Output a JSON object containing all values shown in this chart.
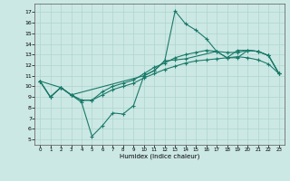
{
  "xlabel": "Humidex (Indice chaleur)",
  "ylabel": "",
  "background_color": "#cce8e4",
  "grid_color": "#afd4ce",
  "line_color": "#1a7a6a",
  "xlim": [
    -0.5,
    23.5
  ],
  "ylim": [
    4.5,
    17.8
  ],
  "xticks": [
    0,
    1,
    2,
    3,
    4,
    5,
    6,
    7,
    8,
    9,
    10,
    11,
    12,
    13,
    14,
    15,
    16,
    17,
    18,
    19,
    20,
    21,
    22,
    23
  ],
  "yticks": [
    5,
    6,
    7,
    8,
    9,
    10,
    11,
    12,
    13,
    14,
    15,
    16,
    17
  ],
  "line1_x": [
    0,
    1,
    2,
    3,
    4,
    5,
    6,
    7,
    8,
    9,
    10,
    11,
    12,
    13,
    14,
    15,
    16,
    17,
    18,
    19,
    20,
    21,
    22,
    23
  ],
  "line1_y": [
    10.5,
    9.0,
    9.9,
    9.2,
    8.5,
    5.3,
    6.3,
    7.5,
    7.4,
    8.2,
    11.0,
    11.5,
    12.4,
    17.1,
    15.9,
    15.3,
    14.5,
    13.3,
    12.7,
    13.4,
    13.4,
    13.3,
    12.9,
    11.2
  ],
  "line2_x": [
    0,
    2,
    3,
    10,
    11,
    12,
    13,
    14,
    17,
    18,
    19,
    20,
    21,
    22,
    23
  ],
  "line2_y": [
    10.5,
    9.9,
    9.2,
    11.0,
    11.5,
    12.4,
    12.5,
    12.6,
    13.3,
    12.7,
    12.7,
    13.4,
    13.3,
    12.9,
    11.2
  ],
  "line3_x": [
    0,
    1,
    2,
    3,
    4,
    5,
    6,
    7,
    8,
    9,
    10,
    11,
    12,
    13,
    14,
    15,
    16,
    17,
    18,
    19,
    20,
    21,
    22,
    23
  ],
  "line3_y": [
    10.5,
    9.0,
    9.9,
    9.2,
    8.7,
    8.7,
    9.5,
    10.0,
    10.3,
    10.6,
    11.2,
    11.8,
    12.2,
    12.7,
    13.0,
    13.2,
    13.4,
    13.3,
    13.2,
    13.2,
    13.4,
    13.3,
    12.9,
    11.2
  ],
  "line4_x": [
    0,
    1,
    2,
    3,
    4,
    5,
    6,
    7,
    8,
    9,
    10,
    11,
    12,
    13,
    14,
    15,
    16,
    17,
    18,
    19,
    20,
    21,
    22,
    23
  ],
  "line4_y": [
    10.5,
    9.0,
    9.9,
    9.2,
    8.7,
    8.7,
    9.2,
    9.7,
    10.0,
    10.3,
    10.8,
    11.2,
    11.6,
    11.9,
    12.2,
    12.4,
    12.5,
    12.6,
    12.7,
    12.8,
    12.7,
    12.5,
    12.1,
    11.2
  ]
}
